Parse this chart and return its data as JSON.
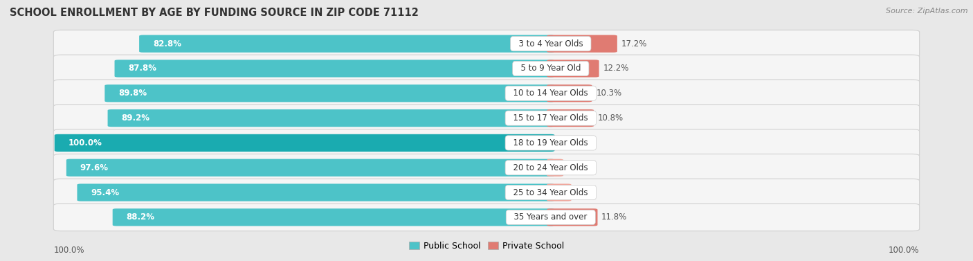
{
  "title": "SCHOOL ENROLLMENT BY AGE BY FUNDING SOURCE IN ZIP CODE 71112",
  "source": "Source: ZipAtlas.com",
  "categories": [
    "3 to 4 Year Olds",
    "5 to 9 Year Old",
    "10 to 14 Year Olds",
    "15 to 17 Year Olds",
    "18 to 19 Year Olds",
    "20 to 24 Year Olds",
    "25 to 34 Year Olds",
    "35 Years and over"
  ],
  "public_values": [
    82.8,
    87.8,
    89.8,
    89.2,
    100.0,
    97.6,
    95.4,
    88.2
  ],
  "private_values": [
    17.2,
    12.2,
    10.3,
    10.8,
    0.0,
    2.4,
    4.6,
    11.8
  ],
  "public_color": "#4dc3c8",
  "public_color_dark": "#1aabb0",
  "private_color_strong": "#e07b72",
  "private_color_light": "#f0a89e",
  "bg_color": "#e8e8e8",
  "row_bg": "#f5f5f5",
  "row_border": "#d0d0d0",
  "label_bg": "#ffffff",
  "x_left_label": "100.0%",
  "x_right_label": "100.0%",
  "legend_public": "Public School",
  "legend_private": "Private School"
}
